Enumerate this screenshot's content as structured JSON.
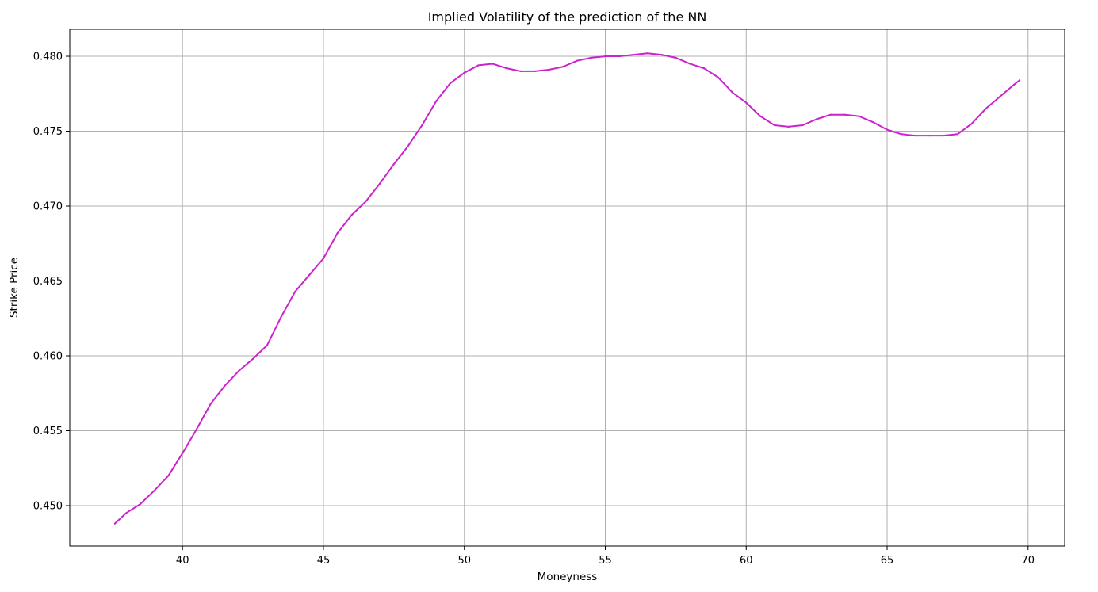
{
  "chart_data": {
    "type": "line",
    "title": "Implied Volatility of the prediction of the NN",
    "xlabel": "Moneyness",
    "ylabel": "Strike Price",
    "xlim": [
      36.0,
      71.3
    ],
    "ylim": [
      0.4473,
      0.4818
    ],
    "xticks": [
      40,
      45,
      50,
      55,
      60,
      65,
      70
    ],
    "yticks": [
      0.45,
      0.455,
      0.46,
      0.465,
      0.47,
      0.475,
      0.48
    ],
    "ytick_labels": [
      "0.450",
      "0.455",
      "0.460",
      "0.465",
      "0.470",
      "0.475",
      "0.480"
    ],
    "xtick_labels": [
      "40",
      "45",
      "50",
      "55",
      "60",
      "65",
      "70"
    ],
    "grid": true,
    "line_color": "#cc22cc",
    "series": [
      {
        "x": [
          37.6,
          38.0,
          38.5,
          39.0,
          39.5,
          40.0,
          40.5,
          41.0,
          41.5,
          42.0,
          42.5,
          43.0,
          43.5,
          44.0,
          44.5,
          45.0,
          45.5,
          46.0,
          46.5,
          47.0,
          47.5,
          48.0,
          48.5,
          49.0,
          49.5,
          50.0,
          50.5,
          51.0,
          51.5,
          52.0,
          52.5,
          53.0,
          53.5,
          54.0,
          54.5,
          55.0,
          55.5,
          56.0,
          56.5,
          57.0,
          57.5,
          58.0,
          58.5,
          59.0,
          59.5,
          60.0,
          60.5,
          61.0,
          61.5,
          62.0,
          62.5,
          63.0,
          63.5,
          64.0,
          64.5,
          65.0,
          65.5,
          66.0,
          66.5,
          67.0,
          67.5,
          68.0,
          68.5,
          69.0,
          69.5,
          69.7
        ],
        "y": [
          0.4488,
          0.4495,
          0.4501,
          0.451,
          0.452,
          0.4535,
          0.4551,
          0.4568,
          0.458,
          0.459,
          0.4598,
          0.4607,
          0.4626,
          0.4643,
          0.4654,
          0.4665,
          0.4682,
          0.4694,
          0.4703,
          0.4715,
          0.4728,
          0.474,
          0.4754,
          0.477,
          0.4782,
          0.4789,
          0.4794,
          0.4795,
          0.4792,
          0.479,
          0.479,
          0.4791,
          0.4793,
          0.4797,
          0.4799,
          0.48,
          0.48,
          0.4801,
          0.4802,
          0.4801,
          0.4799,
          0.4795,
          0.4792,
          0.4786,
          0.4776,
          0.4769,
          0.476,
          0.4754,
          0.4753,
          0.4754,
          0.4758,
          0.4761,
          0.4761,
          0.476,
          0.4756,
          0.4751,
          0.4748,
          0.4747,
          0.4747,
          0.4747,
          0.4748,
          0.4755,
          0.4765,
          0.4773,
          0.4781,
          0.4784
        ]
      }
    ]
  }
}
